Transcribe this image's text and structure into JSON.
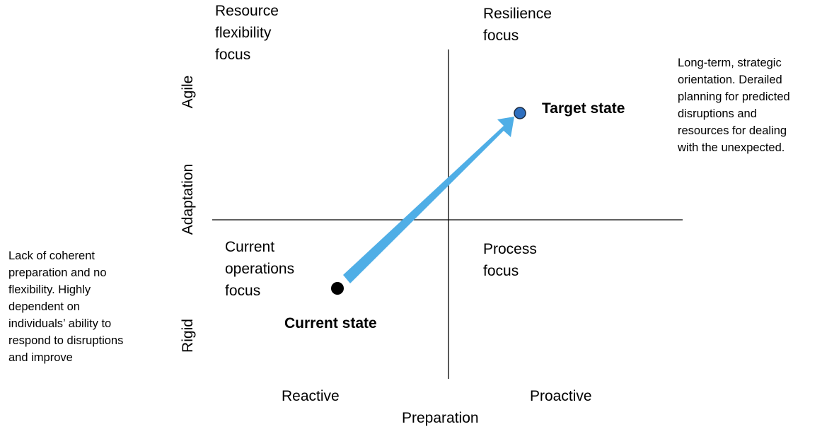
{
  "quadrants": {
    "top_left": "Resource\nflexibility\nfocus",
    "top_right": "Resilience\nfocus",
    "bottom_left": "Current\noperations\nfocus",
    "bottom_right": "Process\nfocus"
  },
  "axes": {
    "y_label": "Adaptation",
    "y_top": "Agile",
    "y_bottom": "Rigid",
    "x_label": "Preparation",
    "x_left": "Reactive",
    "x_right": "Proactive"
  },
  "points": {
    "current": "Current state",
    "target": "Target state"
  },
  "notes": {
    "right": "Long-term, strategic\norientation. Derailed\nplanning for predicted\ndisruptions and\nresources for dealing\nwith the unexpected.",
    "left": "Lack of coherent\npreparation and no\nflexibility. Highly\ndependent on\nindividuals’ ability to\nrespond to disruptions\nand improve"
  },
  "colors": {
    "arrow": "#4FAEE6",
    "target_dot": "#2E6FBF",
    "current_dot": "#000000"
  }
}
